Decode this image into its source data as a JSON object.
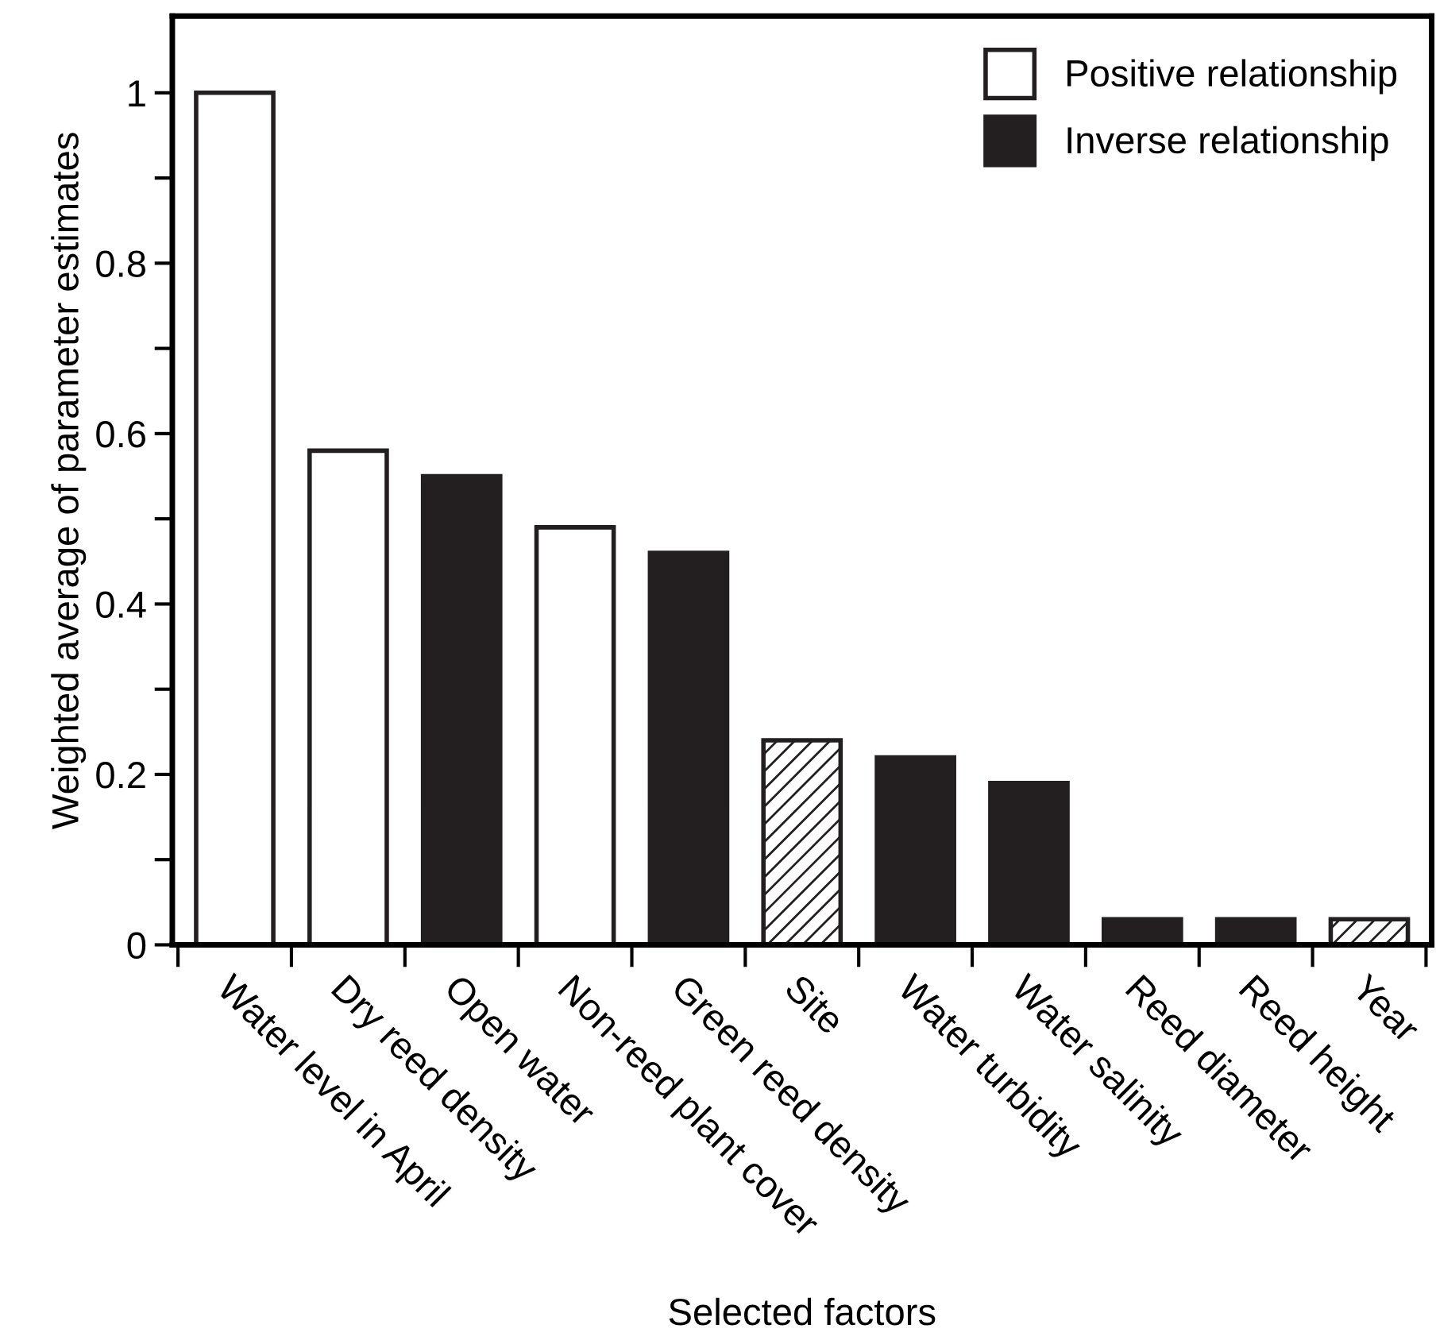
{
  "chart_data": {
    "type": "bar",
    "xlabel": "Selected factors",
    "ylabel": "Weighted average of parameter estimates",
    "categories": [
      "Water level in April",
      "Dry reed density",
      "Open water",
      "Non-reed plant cover",
      "Green reed density",
      "Site",
      "Water turbidity",
      "Water salinity",
      "Reed diameter",
      "Reed height",
      "Year"
    ],
    "series": [
      {
        "name": "Positive relationship",
        "color": "#ffffff",
        "values": [
          1.0,
          0.58,
          null,
          0.49,
          null,
          null,
          null,
          null,
          null,
          null,
          null
        ]
      },
      {
        "name": "Inverse relationship",
        "color": "#231f20",
        "values": [
          null,
          null,
          0.55,
          null,
          0.46,
          null,
          0.22,
          0.19,
          0.03,
          0.03,
          null
        ]
      },
      {
        "color": "#231f20",
        "values": [
          null,
          null,
          null,
          null,
          null,
          0.24,
          null,
          null,
          null,
          null,
          0.03
        ]
      }
    ],
    "ylim": [
      0,
      1.09
    ],
    "yticks": [
      0,
      {
        "value": 0.1,
        "label": null
      },
      0.2,
      {
        "value": 0.3,
        "label": null
      },
      0.4,
      {
        "value": 0.5,
        "label": null
      },
      0.6,
      {
        "value": 0.7,
        "label": null
      },
      0.8,
      {
        "value": 0.9,
        "label": null
      },
      1
    ],
    "legend": "top right",
    "grid": false
  }
}
